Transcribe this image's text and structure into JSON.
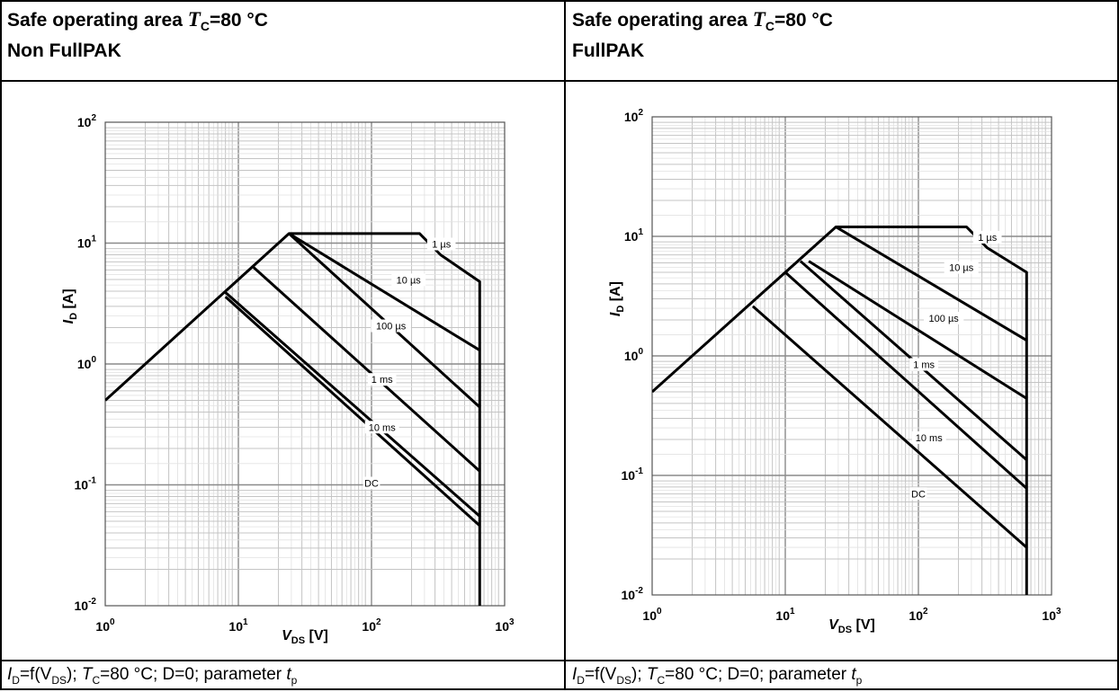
{
  "left_panel": {
    "title_prefix": "Safe operating area ",
    "title_var": "T",
    "title_sub": "C",
    "title_suffix": "=80 °C",
    "title_line2": "Non FullPAK",
    "caption_i": "I",
    "caption_i_sub": "D",
    "caption_f": "=f(V",
    "caption_v_sub": "DS",
    "caption_mid": "); ",
    "caption_t": "T",
    "caption_t_sub": "C",
    "caption_rest": "=80 °C; D=0; parameter ",
    "caption_tp": "t",
    "caption_tp_sub": "p"
  },
  "right_panel": {
    "title_prefix": "Safe operating area ",
    "title_var": "T",
    "title_sub": "C",
    "title_suffix": "=80 °C",
    "title_line2": "FullPAK",
    "caption_i": "I",
    "caption_i_sub": "D",
    "caption_f": "=f(V",
    "caption_v_sub": "DS",
    "caption_mid": "); ",
    "caption_t": "T",
    "caption_t_sub": "C",
    "caption_rest": "=80 °C; D=0; parameter ",
    "caption_tp": "t",
    "caption_tp_sub": "p"
  },
  "chart_data": [
    {
      "type": "line",
      "x_scale": "log",
      "y_scale": "log",
      "xlim": [
        1,
        1000
      ],
      "ylim": [
        0.01,
        100
      ],
      "xlabel": "V_DS [V]",
      "ylabel": "I_D [A]",
      "x_ticks": [
        {
          "base": "10",
          "exp": "0",
          "value": 1
        },
        {
          "base": "10",
          "exp": "1",
          "value": 10
        },
        {
          "base": "10",
          "exp": "2",
          "value": 100
        },
        {
          "base": "10",
          "exp": "3",
          "value": 1000
        }
      ],
      "y_ticks": [
        {
          "base": "10",
          "exp": "-2",
          "value": 0.01
        },
        {
          "base": "10",
          "exp": "-1",
          "value": 0.1
        },
        {
          "base": "10",
          "exp": "0",
          "value": 1
        },
        {
          "base": "10",
          "exp": "1",
          "value": 10
        },
        {
          "base": "10",
          "exp": "2",
          "value": 100
        }
      ],
      "grid": true,
      "series": [
        {
          "name": "1 µs",
          "label_at": [
            335,
            9.5
          ],
          "points": [
            [
              1,
              0.5
            ],
            [
              24,
              12
            ],
            [
              230,
              12
            ],
            [
              330,
              8
            ],
            [
              650,
              4.8
            ],
            [
              650,
              0.01
            ]
          ]
        },
        {
          "name": "10 µs",
          "label_at": [
            190,
            4.8
          ],
          "points": [
            [
              24,
              12
            ],
            [
              650,
              1.3
            ]
          ]
        },
        {
          "name": "100 µs",
          "label_at": [
            140,
            2.0
          ],
          "points": [
            [
              24,
              12
            ],
            [
              650,
              0.44
            ]
          ]
        },
        {
          "name": "1 ms",
          "label_at": [
            120,
            0.72
          ],
          "points": [
            [
              13,
              6.3
            ],
            [
              650,
              0.13
            ]
          ]
        },
        {
          "name": "10 ms",
          "label_at": [
            120,
            0.29
          ],
          "points": [
            [
              8,
              3.9
            ],
            [
              650,
              0.055
            ]
          ]
        },
        {
          "name": "DC",
          "label_at": [
            100,
            0.1
          ],
          "points": [
            [
              8,
              3.6
            ],
            [
              650,
              0.046
            ]
          ]
        }
      ]
    },
    {
      "type": "line",
      "x_scale": "log",
      "y_scale": "log",
      "xlim": [
        1,
        1000
      ],
      "ylim": [
        0.01,
        100
      ],
      "xlabel": "V_DS [V]",
      "ylabel": "I_D [A]",
      "x_ticks": [
        {
          "base": "10",
          "exp": "0",
          "value": 1
        },
        {
          "base": "10",
          "exp": "1",
          "value": 10
        },
        {
          "base": "10",
          "exp": "2",
          "value": 100
        },
        {
          "base": "10",
          "exp": "3",
          "value": 1000
        }
      ],
      "y_ticks": [
        {
          "base": "10",
          "exp": "-2",
          "value": 0.01
        },
        {
          "base": "10",
          "exp": "-1",
          "value": 0.1
        },
        {
          "base": "10",
          "exp": "0",
          "value": 1
        },
        {
          "base": "10",
          "exp": "1",
          "value": 10
        },
        {
          "base": "10",
          "exp": "2",
          "value": 100
        }
      ],
      "grid": true,
      "series": [
        {
          "name": "1 µs",
          "label_at": [
            330,
            9.5
          ],
          "points": [
            [
              1,
              0.5
            ],
            [
              24,
              12
            ],
            [
              230,
              12
            ],
            [
              330,
              8
            ],
            [
              650,
              5
            ],
            [
              650,
              0.01
            ]
          ]
        },
        {
          "name": "10 µs",
          "label_at": [
            210,
            5.3
          ],
          "points": [
            [
              24,
              12
            ],
            [
              650,
              1.35
            ]
          ]
        },
        {
          "name": "100 µs",
          "label_at": [
            155,
            2.0
          ],
          "points": [
            [
              15,
              6.2
            ],
            [
              650,
              0.44
            ]
          ]
        },
        {
          "name": "1 ms",
          "label_at": [
            110,
            0.82
          ],
          "points": [
            [
              13,
              6.2
            ],
            [
              650,
              0.135
            ]
          ]
        },
        {
          "name": "10 ms",
          "label_at": [
            120,
            0.2
          ],
          "points": [
            [
              10,
              5
            ],
            [
              650,
              0.078
            ]
          ]
        },
        {
          "name": "DC",
          "label_at": [
            100,
            0.068
          ],
          "points": [
            [
              5.7,
              2.6
            ],
            [
              650,
              0.025
            ]
          ]
        }
      ]
    }
  ]
}
